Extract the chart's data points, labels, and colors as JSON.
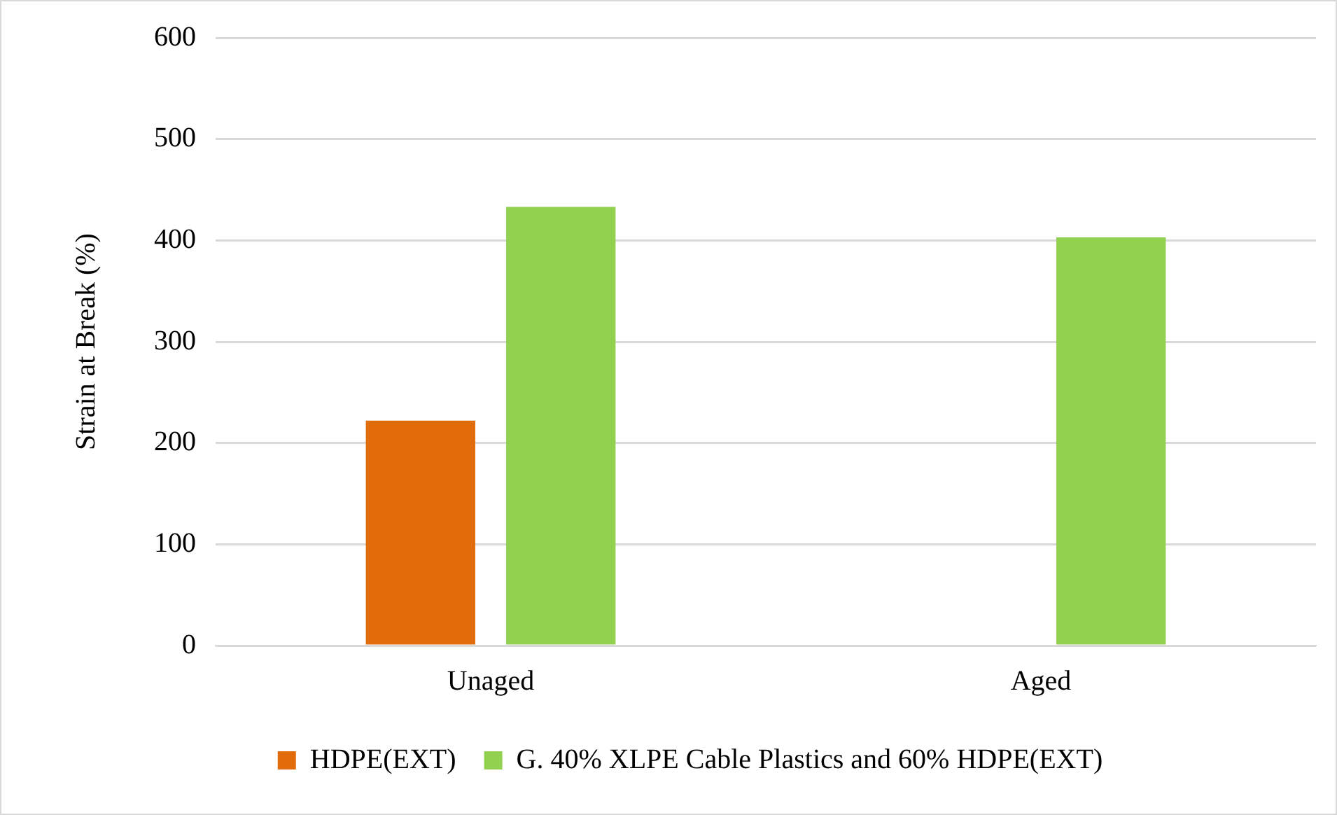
{
  "chart_data": {
    "type": "bar",
    "ylabel": "Strain at Break (%)",
    "categories": [
      "Unaged",
      "Aged"
    ],
    "series": [
      {
        "name": "HDPE(EXT)",
        "color": "#e36c0a",
        "values": [
          222,
          null
        ]
      },
      {
        "name": "G. 40% XLPE Cable Plastics and 60% HDPE(EXT)",
        "color": "#92d050",
        "values": [
          433,
          403
        ]
      }
    ],
    "ylim": [
      0,
      600
    ],
    "yticks": [
      0,
      100,
      200,
      300,
      400,
      500,
      600
    ],
    "grid": "y",
    "legend": "bottom"
  }
}
